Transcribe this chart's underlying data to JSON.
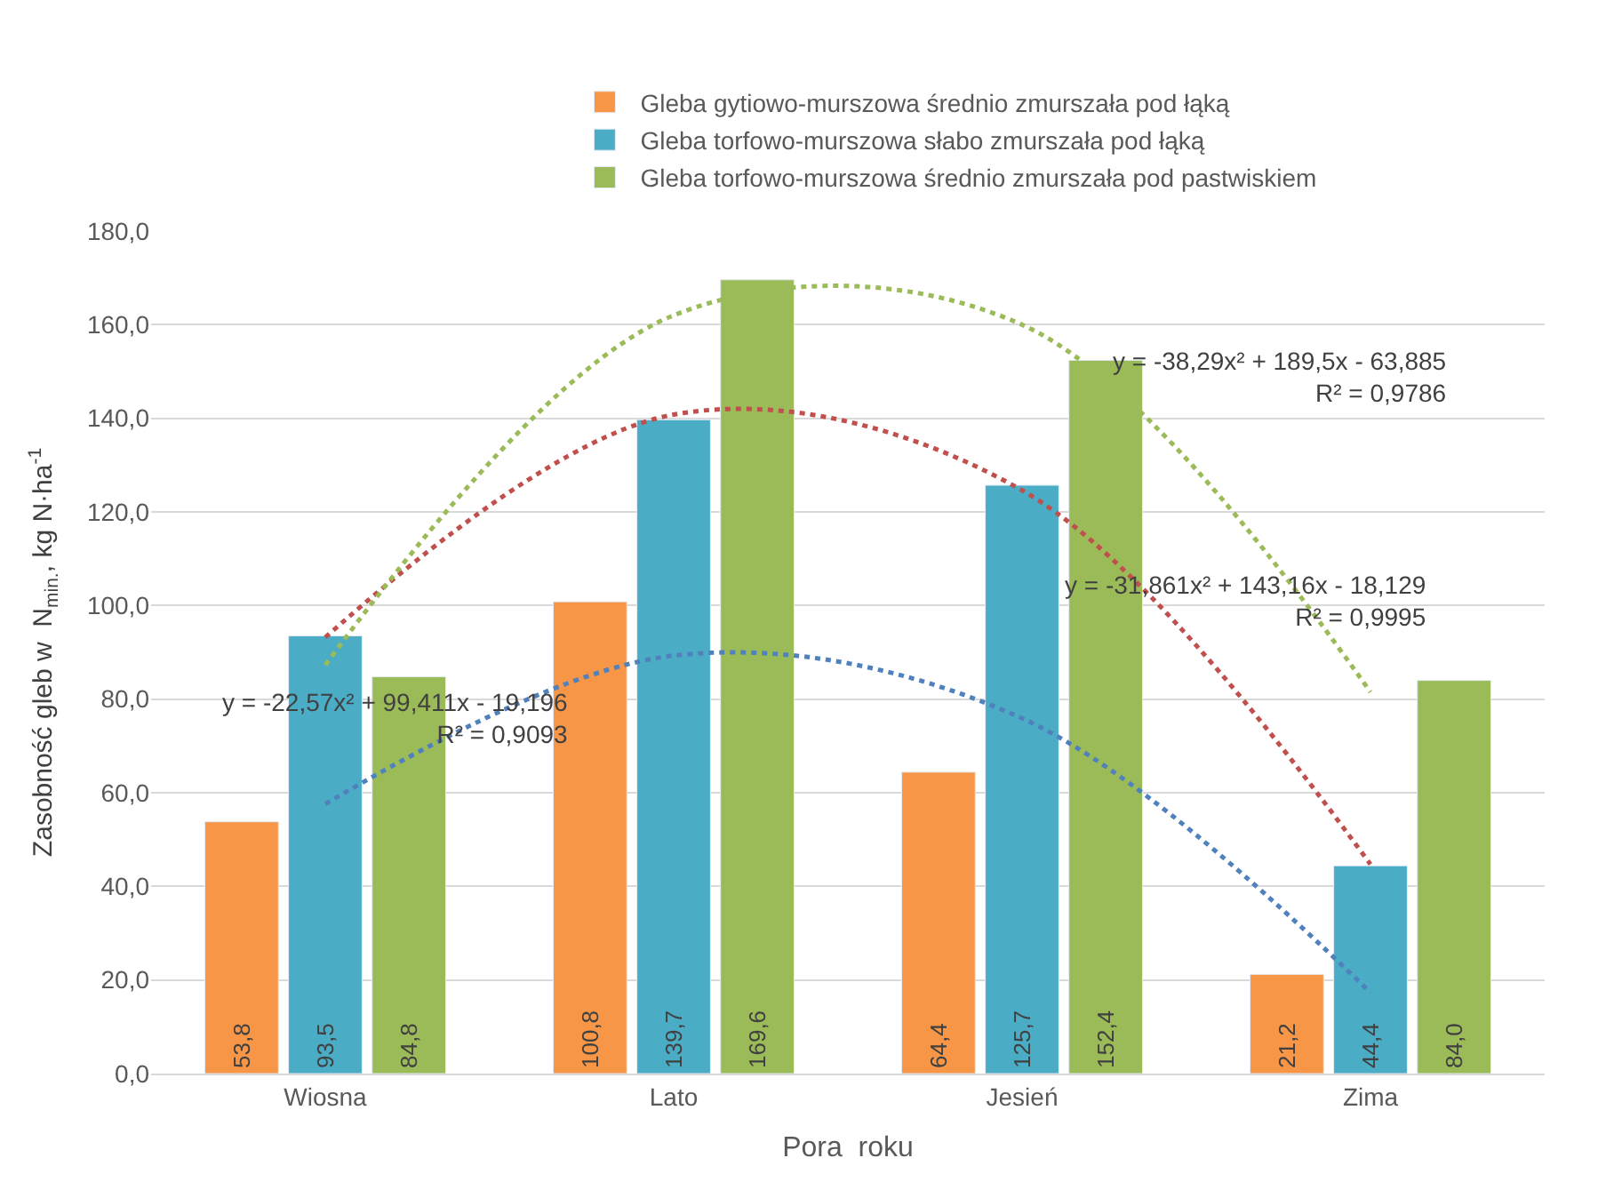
{
  "chart_data": {
    "type": "bar",
    "categories": [
      "Wiosna",
      "Lato",
      "Jesień",
      "Zima"
    ],
    "xlabel": "Pora  roku",
    "ylabel": "Zasobność gleb w  N$_{min.}$, kg N·ha$^{-1}$",
    "ylim": [
      0,
      180
    ],
    "yticks": [
      {
        "value": 0,
        "label": "0,0"
      },
      {
        "value": 20,
        "label": "20,0"
      },
      {
        "value": 40,
        "label": "40,0"
      },
      {
        "value": 60,
        "label": "60,0"
      },
      {
        "value": 80,
        "label": "80,0"
      },
      {
        "value": 100,
        "label": "100,0"
      },
      {
        "value": 120,
        "label": "120,0"
      },
      {
        "value": 140,
        "label": "140,0"
      },
      {
        "value": 160,
        "label": "160,0"
      },
      {
        "value": 180,
        "label": "180,0"
      }
    ],
    "grid": "y",
    "legend": "top",
    "series": [
      {
        "name": "Gleba gytiowo-murszowa średnio zmurszała pod łąką",
        "color": "#f79646",
        "values": [
          53.8,
          100.8,
          64.4,
          21.2
        ],
        "value_labels": [
          "53,8",
          "100,8",
          "64,4",
          "21,2"
        ]
      },
      {
        "name": "Gleba torfowo-murszowa słabo zmurszała pod łąką",
        "color": "#4bacc6",
        "values": [
          93.5,
          139.7,
          125.7,
          44.4
        ],
        "value_labels": [
          "93,5",
          "139,7",
          "125,7",
          "44,4"
        ]
      },
      {
        "name": "Gleba torfowo-murszowa średnio zmurszała pod pastwiskiem",
        "color": "#9bbb59",
        "values": [
          84.8,
          169.6,
          152.4,
          84.0
        ],
        "value_labels": [
          "84,8",
          "169,6",
          "152,4",
          "84,0"
        ]
      },
      {
        "type": "line",
        "line_style": "dotted",
        "color": "#4f81bd",
        "values": [
          57.6,
          89.3,
          75.9,
          17.3
        ]
      },
      {
        "type": "line",
        "line_style": "dotted",
        "color": "#c0504d",
        "values": [
          93.2,
          140.8,
          124.6,
          44.7
        ]
      },
      {
        "type": "line",
        "line_style": "dotted",
        "color": "#9bbb59",
        "values": [
          87.3,
          162.0,
          160.0,
          81.5
        ]
      }
    ],
    "annotations": [
      "y = -22,57x² + 99,411x - 19,196\nR² = 0,9093",
      "y = -31,861x² + 143,16x - 18,129\nR² = 0,9995",
      "y = -38,29x² + 189,5x - 63,885\nR² = 0,9786"
    ]
  }
}
